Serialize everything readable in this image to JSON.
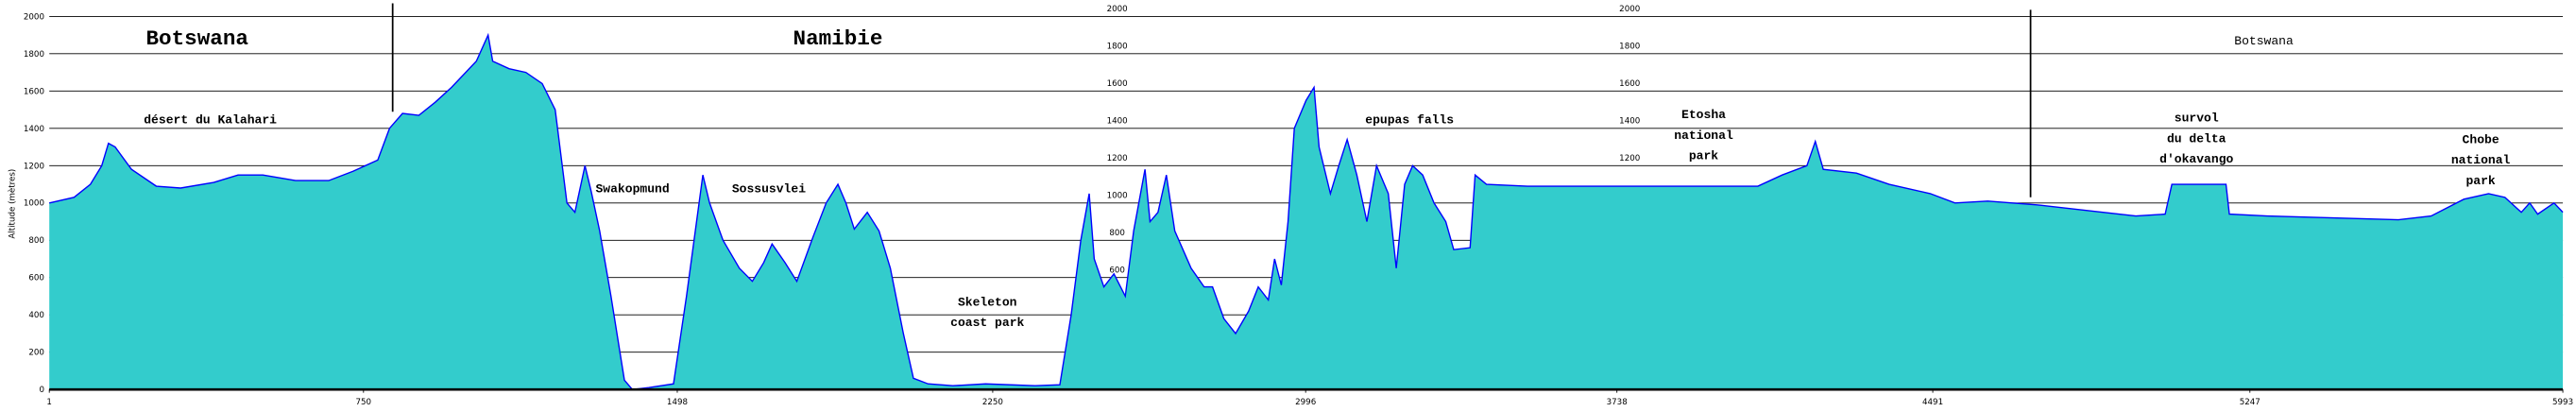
{
  "chart_data": {
    "type": "area",
    "ylabel": "Altitude (mètres)",
    "xlim": [
      1,
      5993
    ],
    "ylim": [
      0,
      2000
    ],
    "xticks": [
      1,
      750,
      1498,
      2250,
      2996,
      3738,
      4491,
      5247,
      5993
    ],
    "yticks": [
      0,
      200,
      400,
      600,
      800,
      1000,
      1200,
      1400,
      1600,
      1800,
      2000
    ],
    "inner_yticks": [
      [
        2000,
        1800,
        1600,
        1400,
        1200,
        1000,
        800,
        600
      ],
      [
        2000,
        1800,
        1600,
        1400,
        1200
      ]
    ],
    "grid": true,
    "color": "#33cccc",
    "line_color": "#0000ff",
    "x": [
      1,
      60,
      99,
      126,
      142,
      158,
      197,
      256,
      314,
      393,
      451,
      510,
      588,
      667,
      725,
      784,
      812,
      843,
      882,
      921,
      960,
      1019,
      1047,
      1058,
      1097,
      1137,
      1176,
      1207,
      1235,
      1254,
      1278,
      1293,
      1313,
      1340,
      1372,
      1391,
      1430,
      1489,
      1520,
      1544,
      1559,
      1575,
      1607,
      1646,
      1677,
      1704,
      1724,
      1755,
      1783,
      1822,
      1853,
      1881,
      1900,
      1920,
      1951,
      1979,
      2006,
      2037,
      2061,
      2096,
      2155,
      2233,
      2351,
      2410,
      2437,
      2460,
      2480,
      2492,
      2515,
      2539,
      2566,
      2586,
      2613,
      2625,
      2644,
      2664,
      2684,
      2723,
      2754,
      2774,
      2801,
      2829,
      2860,
      2883,
      2907,
      2922,
      2938,
      2954,
      2969,
      2997,
      3016,
      3028,
      3055,
      3075,
      3095,
      3118,
      3142,
      3165,
      3193,
      3212,
      3232,
      3251,
      3275,
      3302,
      3330,
      3349,
      3388,
      3400,
      3427,
      3525,
      3643,
      3800,
      3956,
      4074,
      4132,
      4191,
      4211,
      4230,
      4309,
      4387,
      4485,
      4544,
      4622,
      4739,
      4857,
      4975,
      5045,
      5061,
      5131,
      5190,
      5198,
      5288,
      5445,
      5601,
      5679,
      5757,
      5816,
      5855,
      5894,
      5914,
      5933,
      5972,
      5993
    ],
    "values": [
      1000,
      1030,
      1100,
      1200,
      1320,
      1300,
      1180,
      1090,
      1080,
      1110,
      1150,
      1150,
      1120,
      1120,
      1170,
      1230,
      1400,
      1480,
      1470,
      1540,
      1620,
      1760,
      1900,
      1760,
      1720,
      1700,
      1640,
      1500,
      1000,
      950,
      1200,
      1060,
      850,
      500,
      50,
      0,
      10,
      30,
      500,
      900,
      1150,
      1000,
      800,
      650,
      580,
      680,
      780,
      680,
      580,
      820,
      1000,
      1100,
      1000,
      860,
      950,
      850,
      650,
      300,
      60,
      30,
      20,
      30,
      20,
      25,
      400,
      800,
      1050,
      700,
      550,
      620,
      500,
      850,
      1180,
      900,
      950,
      1150,
      850,
      650,
      550,
      550,
      380,
      300,
      420,
      550,
      480,
      700,
      560,
      900,
      1400,
      1550,
      1620,
      1300,
      1050,
      1200,
      1340,
      1150,
      900,
      1200,
      1050,
      650,
      1100,
      1200,
      1150,
      1000,
      900,
      750,
      760,
      1150,
      1100,
      1090,
      1090,
      1090,
      1090,
      1090,
      1150,
      1200,
      1330,
      1180,
      1160,
      1100,
      1050,
      1000,
      1010,
      990,
      960,
      930,
      940,
      1100,
      1100,
      1100,
      940,
      930,
      920,
      910,
      930,
      1020,
      1050,
      1030,
      950,
      1000,
      940,
      1000,
      950
    ],
    "annotations": [
      {
        "lines": [
          "Botswana"
        ]
      },
      {
        "lines": [
          "Namibie"
        ]
      },
      {
        "lines": [
          "désert du Kalahari"
        ]
      },
      {
        "lines": [
          "Swakopmund"
        ]
      },
      {
        "lines": [
          "Sossusvlei"
        ]
      },
      {
        "lines": [
          "Skeleton",
          "coast park"
        ]
      },
      {
        "lines": [
          "epupas falls"
        ]
      },
      {
        "lines": [
          "Etosha",
          "national",
          "park"
        ]
      },
      {
        "lines": [
          "survol",
          "du delta",
          "d'okavango"
        ]
      },
      {
        "lines": [
          "Chobe",
          "national",
          "park"
        ]
      },
      {
        "lines": [
          "Botswana"
        ]
      }
    ]
  }
}
